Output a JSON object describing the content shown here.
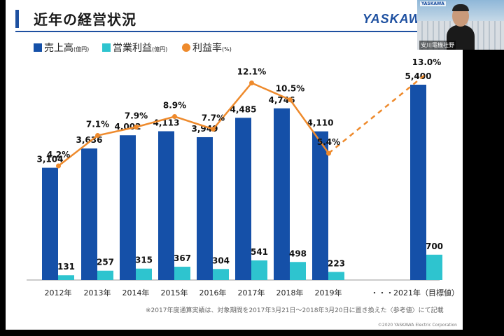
{
  "slide": {
    "title": "近年の経営状況",
    "logo": "YASKAWA",
    "footnote": "※2017年度通算実績は、対象期間を2017年3月21日～2018年3月20日に置き換えた〈参考値〉にて記載",
    "copyright": "©2020 YASKAWA Electric Corporation"
  },
  "webcam": {
    "name_label": "安川電機社野",
    "logo_label": "YASKAWA"
  },
  "colors": {
    "sales": "#1550a8",
    "operating_profit": "#2ec4cf",
    "margin": "#ee8a2c",
    "title_bar": "#1e50a0"
  },
  "chart_data": {
    "type": "bar",
    "legend_position": "top-left",
    "legend": [
      {
        "name": "売上高",
        "unit": "(億円)",
        "marker": "square",
        "color": "#1550a8"
      },
      {
        "name": "営業利益",
        "unit": "(億円)",
        "marker": "square",
        "color": "#2ec4cf"
      },
      {
        "name": "利益率",
        "unit": "(%)",
        "marker": "circle",
        "color": "#ee8a2c"
      }
    ],
    "categories": [
      "2012年",
      "2013年",
      "2014年",
      "2015年",
      "2016年",
      "2017年",
      "2018年",
      "2019年",
      "・・・",
      "2021年（目標値）"
    ],
    "series": [
      {
        "name": "売上高",
        "values": [
          3104,
          3636,
          4002,
          4113,
          3949,
          4485,
          4746,
          4110,
          null,
          5400
        ],
        "labels": [
          "3,104",
          "3,636",
          "4,002",
          "4,113",
          "3,949",
          "4,485",
          "4,746",
          "4,110",
          "",
          "5,400"
        ]
      },
      {
        "name": "営業利益",
        "values": [
          131,
          257,
          315,
          367,
          304,
          541,
          498,
          223,
          null,
          700
        ],
        "labels": [
          "131",
          "257",
          "315",
          "367",
          "304",
          "541",
          "498",
          "223",
          "",
          "700"
        ]
      },
      {
        "name": "利益率",
        "values": [
          4.2,
          7.1,
          7.9,
          8.9,
          7.7,
          12.1,
          10.5,
          5.4,
          null,
          13.0
        ],
        "labels": [
          "4.2%",
          "7.1%",
          "7.9%",
          "8.9%",
          "7.7%",
          "12.1%",
          "10.5%",
          "5.4%",
          "",
          "13.0%"
        ],
        "dashed_segment": [
          "2019年",
          "2021年（目標値）"
        ]
      }
    ],
    "bar_ylim": [
      0,
      6000
    ],
    "line_ylim": [
      0,
      18
    ],
    "grid": false
  }
}
